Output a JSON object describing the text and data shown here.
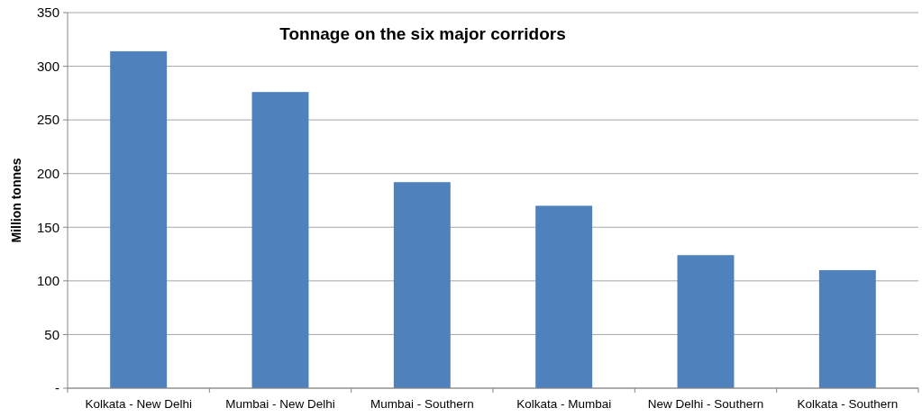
{
  "chart_data": {
    "type": "bar",
    "title": "Tonnage on the six major corridors",
    "ylabel": "Million tonnes",
    "categories": [
      "Kolkata - New Delhi",
      "Mumbai - New Delhi",
      "Mumbai - Southern",
      "Kolkata - Mumbai",
      "New Delhi - Southern",
      "Kolkata - Southern"
    ],
    "values": [
      314,
      276,
      192,
      170,
      124,
      110
    ],
    "color": "#4f81bd",
    "ylim": [
      0,
      350
    ],
    "yticks": [
      {
        "value": 0,
        "label": "-"
      },
      50,
      100,
      150,
      200,
      250,
      300,
      350
    ],
    "grid": "y"
  }
}
